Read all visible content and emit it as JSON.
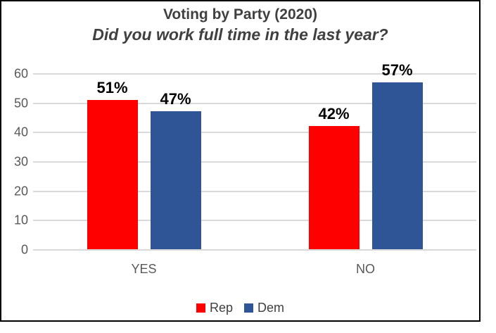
{
  "title": "Voting by Party (2020)",
  "subtitle": "Did you work full time in the last year?",
  "chart_data": {
    "type": "bar",
    "title": "Voting by Party (2020)",
    "subtitle": "Did you work full time in the last year?",
    "categories": [
      "YES",
      "NO"
    ],
    "series": [
      {
        "name": "Rep",
        "color": "#FF0000",
        "values": [
          51,
          42
        ]
      },
      {
        "name": "Dem",
        "color": "#2F5597",
        "values": [
          47,
          57
        ]
      }
    ],
    "value_suffix": "%",
    "data_labels": [
      "51%",
      "47%",
      "42%",
      "57%"
    ],
    "ylim": [
      0,
      60
    ],
    "yticks": [
      0,
      10,
      20,
      30,
      40,
      50,
      60
    ],
    "grid": "horizontal",
    "legend_position": "bottom",
    "legend_labels": [
      "Rep",
      "Dem"
    ]
  },
  "colors": {
    "rep": "#FF0000",
    "dem": "#2F5597",
    "title_text": "#404040",
    "axis_text": "#595959",
    "gridline": "#D9D9D9",
    "data_label": "#000000",
    "border": "#000000",
    "background": "#FFFFFF"
  }
}
